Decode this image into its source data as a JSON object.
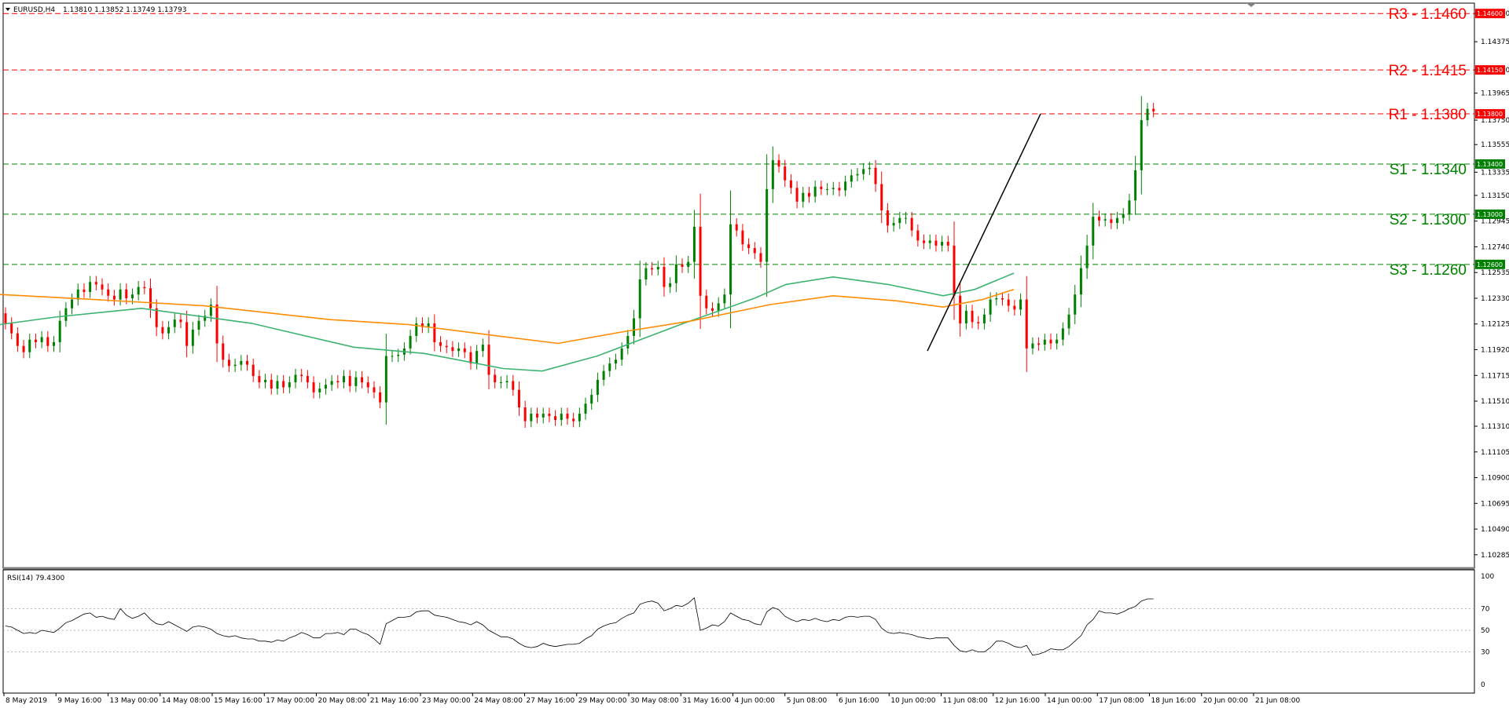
{
  "chart_data": {
    "type": "candlestick",
    "title": "EURUSD,H4",
    "ohlc_header": "1.13810 1.13852 1.13749 1.13793",
    "x_tick_labels": [
      "8 May 2019",
      "9 May 16:00",
      "13 May 00:00",
      "14 May 08:00",
      "15 May 16:00",
      "17 May 00:00",
      "20 May 08:00",
      "21 May 16:00",
      "23 May 00:00",
      "24 May 08:00",
      "27 May 16:00",
      "29 May 00:00",
      "30 May 08:00",
      "31 May 16:00",
      "4 Jun 00:00",
      "5 Jun 08:00",
      "6 Jun 16:00",
      "10 Jun 00:00",
      "11 Jun 08:00",
      "12 Jun 16:00",
      "14 Jun 00:00",
      "17 Jun 08:00",
      "18 Jun 16:00",
      "20 Jun 00:00",
      "21 Jun 08:00"
    ],
    "price_axis": {
      "ylim": [
        1.1019,
        1.1467
      ],
      "tick_labels": [
        "1.14600",
        "1.14375",
        "1.14150",
        "1.13965",
        "1.13750",
        "1.13555",
        "1.13335",
        "1.13150",
        "1.12945",
        "1.12740",
        "1.12535",
        "1.12330",
        "1.12125",
        "1.11920",
        "1.11715",
        "1.11510",
        "1.11310",
        "1.11105",
        "1.10900",
        "1.10695",
        "1.10490",
        "1.10285"
      ]
    },
    "levels": [
      {
        "label": "R3 - 1.1460",
        "value": 1.146,
        "tag": "1.14600",
        "color": "#ff0000"
      },
      {
        "label": "R2 - 1.1415",
        "value": 1.1415,
        "tag": "1.14150",
        "color": "#ff0000"
      },
      {
        "label": "R1 - 1.1380",
        "value": 1.138,
        "tag": "1.13800",
        "color": "#ff0000"
      },
      {
        "label": "S1 - 1.1340",
        "value": 1.134,
        "tag": "1.13400",
        "color": "#008000"
      },
      {
        "label": "S2 - 1.1300",
        "value": 1.13,
        "tag": "1.13000",
        "color": "#008000"
      },
      {
        "label": "S3 - 1.1260",
        "value": 1.126,
        "tag": "1.12600",
        "color": "#008000"
      }
    ],
    "candles": {
      "bull_color": "#008000",
      "bear_color": "#ff0000",
      "close": [
        1.1213,
        1.1205,
        1.1195,
        1.119,
        1.12,
        1.1198,
        1.1202,
        1.1195,
        1.1198,
        1.1215,
        1.1225,
        1.1232,
        1.124,
        1.1238,
        1.1246,
        1.1244,
        1.124,
        1.1235,
        1.1232,
        1.124,
        1.1233,
        1.1236,
        1.1242,
        1.1241,
        1.1225,
        1.121,
        1.1205,
        1.121,
        1.1216,
        1.1214,
        1.1195,
        1.1208,
        1.1215,
        1.1219,
        1.1228,
        1.1197,
        1.1184,
        1.1179,
        1.118,
        1.1183,
        1.118,
        1.1171,
        1.1166,
        1.1168,
        1.1161,
        1.1167,
        1.1162,
        1.1166,
        1.1172,
        1.1171,
        1.1166,
        1.1158,
        1.1161,
        1.1164,
        1.1167,
        1.1166,
        1.1171,
        1.1163,
        1.117,
        1.1166,
        1.1162,
        1.1158,
        1.115,
        1.1187,
        1.1187,
        1.1188,
        1.1193,
        1.1203,
        1.1213,
        1.121,
        1.1213,
        1.1198,
        1.1195,
        1.1194,
        1.1191,
        1.1193,
        1.119,
        1.1181,
        1.1191,
        1.1196,
        1.1172,
        1.1166,
        1.1166,
        1.1167,
        1.116,
        1.1146,
        1.1135,
        1.1141,
        1.1138,
        1.1141,
        1.1139,
        1.1136,
        1.1141,
        1.1137,
        1.1135,
        1.1141,
        1.1149,
        1.1156,
        1.1168,
        1.1175,
        1.1181,
        1.1184,
        1.1193,
        1.1203,
        1.1217,
        1.1248,
        1.1257,
        1.1256,
        1.1258,
        1.1242,
        1.1245,
        1.126,
        1.1258,
        1.1262,
        1.129,
        1.1235,
        1.1225,
        1.1223,
        1.1229,
        1.1236,
        1.1292,
        1.1287,
        1.1276,
        1.1273,
        1.1269,
        1.1262,
        1.132,
        1.1343,
        1.1338,
        1.1327,
        1.1321,
        1.131,
        1.1317,
        1.1314,
        1.1322,
        1.132,
        1.132,
        1.1321,
        1.1319,
        1.1326,
        1.1331,
        1.1332,
        1.1336,
        1.1337,
        1.1324,
        1.1303,
        1.1291,
        1.1293,
        1.1297,
        1.1297,
        1.1287,
        1.1279,
        1.1277,
        1.1279,
        1.1275,
        1.1278,
        1.1275,
        1.1235,
        1.1213,
        1.1223,
        1.1214,
        1.1213,
        1.122,
        1.1232,
        1.1233,
        1.1232,
        1.1227,
        1.1224,
        1.1232,
        1.1193,
        1.1197,
        1.1196,
        1.12,
        1.1197,
        1.12,
        1.1209,
        1.122,
        1.1236,
        1.1257,
        1.1275,
        1.1298,
        1.1295,
        1.1296,
        1.1293,
        1.1297,
        1.13,
        1.1311,
        1.1335,
        1.1375,
        1.1384,
        1.1382
      ]
    },
    "moving_averages": [
      {
        "color": "#3cb371",
        "points": [
          [
            0,
            1.1212
          ],
          [
            70,
            1.1218
          ],
          [
            180,
            1.1225
          ],
          [
            320,
            1.1213
          ],
          [
            450,
            1.1194
          ],
          [
            540,
            1.1189
          ],
          [
            640,
            1.1177
          ],
          [
            690,
            1.1175
          ],
          [
            760,
            1.1187
          ],
          [
            870,
            1.1213
          ],
          [
            960,
            1.1233
          ],
          [
            1000,
            1.1244
          ],
          [
            1060,
            1.125
          ],
          [
            1130,
            1.1244
          ],
          [
            1200,
            1.1235
          ],
          [
            1240,
            1.124
          ],
          [
            1290,
            1.1253
          ]
        ]
      },
      {
        "color": "#ff8c00",
        "points": [
          [
            0,
            1.1236
          ],
          [
            120,
            1.1232
          ],
          [
            260,
            1.1227
          ],
          [
            420,
            1.1216
          ],
          [
            520,
            1.1212
          ],
          [
            620,
            1.1204
          ],
          [
            710,
            1.1197
          ],
          [
            790,
            1.1206
          ],
          [
            880,
            1.1215
          ],
          [
            980,
            1.1228
          ],
          [
            1060,
            1.1235
          ],
          [
            1140,
            1.1231
          ],
          [
            1200,
            1.1226
          ],
          [
            1250,
            1.1232
          ],
          [
            1290,
            1.124
          ]
        ]
      }
    ],
    "trendline": {
      "from": [
        1180,
        1.1191
      ],
      "to": [
        1324,
        1.138
      ],
      "color": "#000000"
    },
    "rsi": {
      "title": "RSI(14) 79.4300",
      "ylim": [
        0,
        100
      ],
      "tick_labels": [
        "100",
        "70",
        "50",
        "30",
        "0"
      ],
      "values": [
        54,
        53,
        50,
        47,
        48,
        47,
        50,
        49,
        48,
        52,
        57,
        59,
        62,
        65,
        66,
        62,
        63,
        61,
        60,
        70,
        64,
        61,
        63,
        66,
        60,
        56,
        55,
        58,
        55,
        52,
        49,
        53,
        54,
        53,
        51,
        47,
        45,
        44,
        45,
        43,
        42,
        42,
        40,
        40,
        39,
        41,
        40,
        43,
        45,
        48,
        46,
        43,
        43,
        47,
        47,
        48,
        46,
        51,
        51,
        48,
        46,
        42,
        37,
        56,
        59,
        62,
        62,
        63,
        67,
        68,
        68,
        64,
        63,
        62,
        60,
        58,
        57,
        55,
        58,
        55,
        50,
        47,
        44,
        44,
        42,
        38,
        35,
        34,
        35,
        38,
        36,
        35,
        36,
        37,
        37,
        38,
        42,
        45,
        51,
        54,
        56,
        57,
        61,
        64,
        66,
        74,
        76,
        77,
        75,
        68,
        70,
        73,
        72,
        75,
        80,
        50,
        52,
        55,
        54,
        58,
        66,
        63,
        60,
        59,
        56,
        55,
        67,
        71,
        69,
        63,
        60,
        58,
        60,
        59,
        61,
        59,
        58,
        60,
        59,
        62,
        63,
        62,
        63,
        63,
        60,
        52,
        48,
        47,
        48,
        47,
        46,
        44,
        43,
        42,
        43,
        43,
        43,
        36,
        31,
        30,
        32,
        30,
        30,
        34,
        40,
        40,
        38,
        35,
        34,
        36,
        27,
        28,
        30,
        33,
        32,
        32,
        35,
        40,
        45,
        55,
        60,
        68,
        66,
        66,
        65,
        67,
        70,
        72,
        77,
        79,
        79
      ]
    },
    "time_axis": {
      "n": 206,
      "first": "8 May 2019"
    }
  }
}
